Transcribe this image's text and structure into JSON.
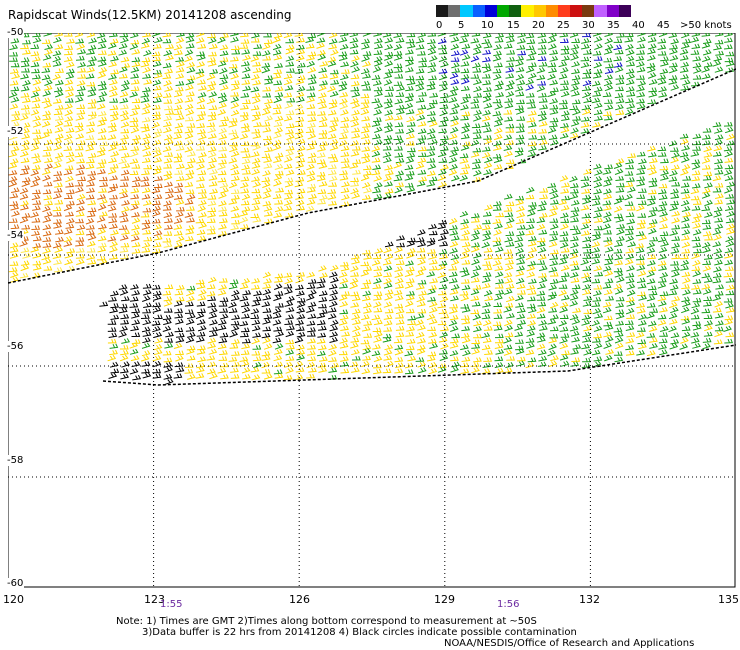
{
  "title": "Rapidscat Winds(12.5KM) 20141208 ascending",
  "legend": {
    "labels": [
      "0",
      "5",
      "10",
      "15",
      "20",
      "25",
      "30",
      "35",
      "40",
      "45",
      ">50 knots"
    ],
    "colors": [
      "#1a1a1a",
      "#6e6e6e",
      "#00c8ff",
      "#0a60ff",
      "#0000d8",
      "#00a800",
      "#106010",
      "#fff000",
      "#ffc800",
      "#ff8c00",
      "#ff3c1c",
      "#cc1010",
      "#7a3a10",
      "#c060ff",
      "#8000c8",
      "#3c0058"
    ]
  },
  "y_axis_labels": [
    "-50",
    "-52",
    "-54",
    "-56",
    "-58",
    "-60"
  ],
  "x_axis_labels": [
    "120",
    "123",
    "126",
    "129",
    "132",
    "135"
  ],
  "time_labels": [
    "1:55",
    "1:56"
  ],
  "notes": {
    "line1": "Note: 1) Times are GMT 2)Times along bottom correspond to measurement at ~50S",
    "line2": "3)Data buffer is 22 hrs from 20141208 4) Black circles indicate possible contamination",
    "credit": "NOAA/NESDIS/Office of Research and Applications"
  },
  "map": {
    "lon_range": [
      120,
      135
    ],
    "lat_range": [
      -60,
      -50
    ],
    "grid": "dotted every 3 deg longitude and 2 deg latitude",
    "swath_colors": {
      "strong": "#d96a12",
      "moderate": "#ffd800",
      "light_moderate": "#ffe84a",
      "light": "#1a9e1a",
      "calm": "#1414c8",
      "contaminated": "#000000"
    }
  }
}
